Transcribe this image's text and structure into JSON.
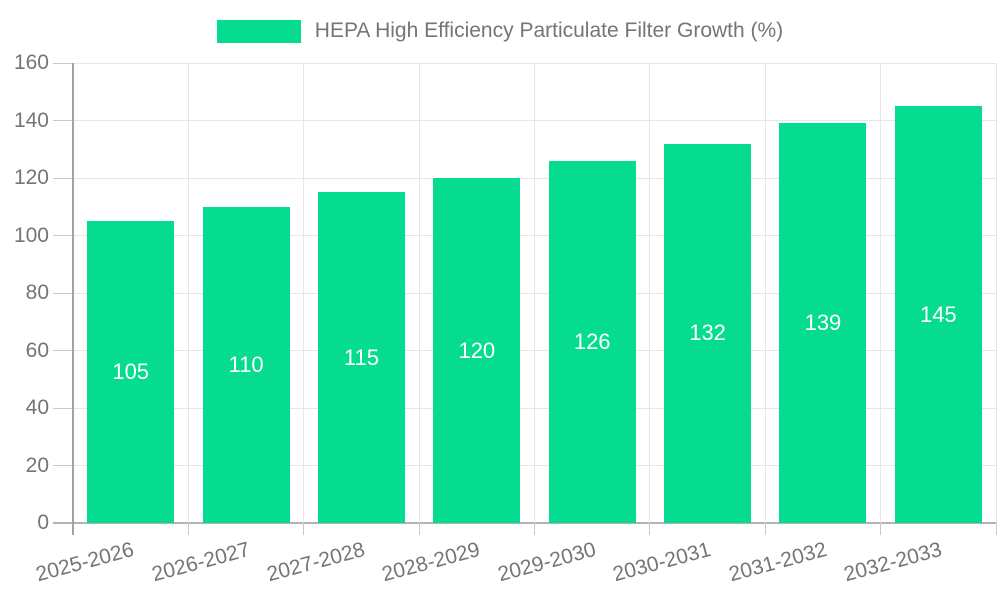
{
  "chart_data": {
    "type": "bar",
    "title": "HEPA High Efficiency Particulate Filter Growth (%)",
    "categories": [
      "2025-2026",
      "2026-2027",
      "2027-2028",
      "2028-2029",
      "2029-2030",
      "2030-2031",
      "2031-2032",
      "2032-2033"
    ],
    "values": [
      105,
      110,
      115,
      120,
      126,
      132,
      139,
      145
    ],
    "series": [
      {
        "name": "HEPA High Efficiency Particulate Filter Growth (%)",
        "values": [
          105,
          110,
          115,
          120,
          126,
          132,
          139,
          145
        ]
      }
    ],
    "xlabel": "",
    "ylabel": "",
    "ylim": [
      0,
      160
    ],
    "yticks": [
      0,
      20,
      40,
      60,
      80,
      100,
      120,
      140,
      160
    ],
    "bar_value_labels": [
      "105",
      "110",
      "115",
      "120",
      "126",
      "132",
      "139",
      "145"
    ],
    "legend_position": "top",
    "grid": true
  },
  "legend": {
    "label": "HEPA High Efficiency Particulate Filter Growth (%)",
    "swatch_color": "#05dc90"
  },
  "colors": {
    "bar": "#05dc90",
    "axis_text": "#757575",
    "grid": "#e6e6e6",
    "tick": "#c9c9c9",
    "axis_line": "#a3a3a3",
    "baseline": "#b3b3b3",
    "value_label": "#ffffff",
    "background": "#ffffff"
  }
}
